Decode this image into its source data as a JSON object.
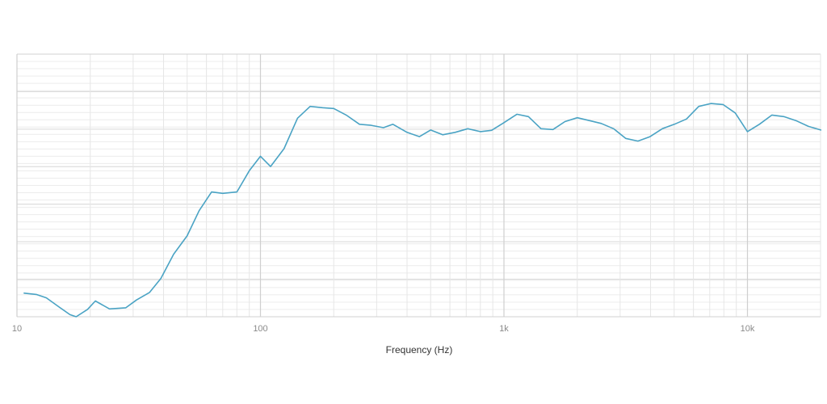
{
  "chart_data": {
    "type": "line",
    "title": "",
    "xlabel": "Frequency (Hz)",
    "ylabel": "",
    "x_scale": "log",
    "xlim": [
      10,
      20000
    ],
    "ylim": [
      0,
      100
    ],
    "x_tick_labels": [
      {
        "value": 10,
        "label": "10"
      },
      {
        "value": 100,
        "label": "100"
      },
      {
        "value": 1000,
        "label": "1k"
      },
      {
        "value": 10000,
        "label": "10k"
      }
    ],
    "grid": true,
    "series": [
      {
        "color": "#4aa3c4",
        "points": [
          [
            10.7,
            9
          ],
          [
            12,
            8.5
          ],
          [
            13.2,
            7.2
          ],
          [
            15,
            3.5
          ],
          [
            16.5,
            0.8
          ],
          [
            17.5,
            0
          ],
          [
            19.5,
            2.8
          ],
          [
            21,
            6
          ],
          [
            24,
            3
          ],
          [
            28,
            3.4
          ],
          [
            31,
            6.4
          ],
          [
            35,
            9.2
          ],
          [
            39,
            14.6
          ],
          [
            44,
            23.8
          ],
          [
            50,
            30.8
          ],
          [
            56,
            40.4
          ],
          [
            63,
            47.5
          ],
          [
            70,
            47
          ],
          [
            80,
            47.5
          ],
          [
            90,
            55.6
          ],
          [
            100,
            61.1
          ],
          [
            110,
            57.2
          ],
          [
            125,
            64
          ],
          [
            142,
            75.6
          ],
          [
            160,
            80.1
          ],
          [
            180,
            79.6
          ],
          [
            200,
            79.3
          ],
          [
            225,
            76.8
          ],
          [
            255,
            73.3
          ],
          [
            285,
            72.9
          ],
          [
            320,
            72
          ],
          [
            350,
            73.3
          ],
          [
            400,
            70.2
          ],
          [
            450,
            68.6
          ],
          [
            500,
            71.1
          ],
          [
            560,
            69.3
          ],
          [
            630,
            70.2
          ],
          [
            710,
            71.6
          ],
          [
            800,
            70.5
          ],
          [
            890,
            71
          ],
          [
            1000,
            73.9
          ],
          [
            1130,
            77.1
          ],
          [
            1260,
            76.2
          ],
          [
            1420,
            71.6
          ],
          [
            1590,
            71.3
          ],
          [
            1780,
            74.3
          ],
          [
            2000,
            75.8
          ],
          [
            2240,
            74.7
          ],
          [
            2510,
            73.6
          ],
          [
            2820,
            71.6
          ],
          [
            3160,
            67.9
          ],
          [
            3550,
            66.9
          ],
          [
            3980,
            68.6
          ],
          [
            4470,
            71.6
          ],
          [
            5010,
            73.3
          ],
          [
            5620,
            75.3
          ],
          [
            6310,
            80.1
          ],
          [
            7080,
            81.2
          ],
          [
            7940,
            80.8
          ],
          [
            8910,
            77.6
          ],
          [
            10000,
            70.5
          ],
          [
            11200,
            73.3
          ],
          [
            12600,
            76.8
          ],
          [
            14100,
            76.2
          ],
          [
            15800,
            74.7
          ],
          [
            17800,
            72.5
          ],
          [
            20000,
            71.1
          ]
        ]
      }
    ]
  }
}
